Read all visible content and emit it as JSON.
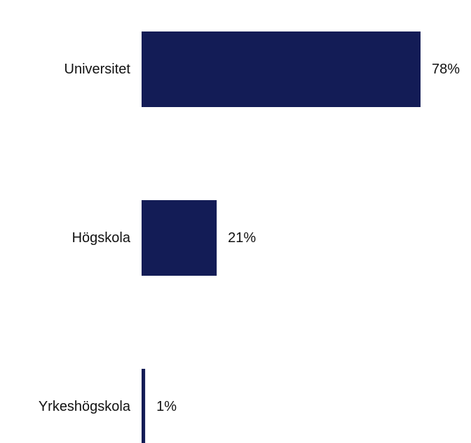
{
  "chart_data": {
    "type": "bar",
    "orientation": "horizontal",
    "categories": [
      "Universitet",
      "Högskola",
      "Yrkeshögskola"
    ],
    "values": [
      78,
      21,
      1
    ],
    "value_labels": [
      "78%",
      "21%",
      "1%"
    ],
    "unit": "%",
    "xlim": [
      0,
      100
    ],
    "bar_color": "#131c56",
    "grid": false,
    "legend": "none"
  }
}
